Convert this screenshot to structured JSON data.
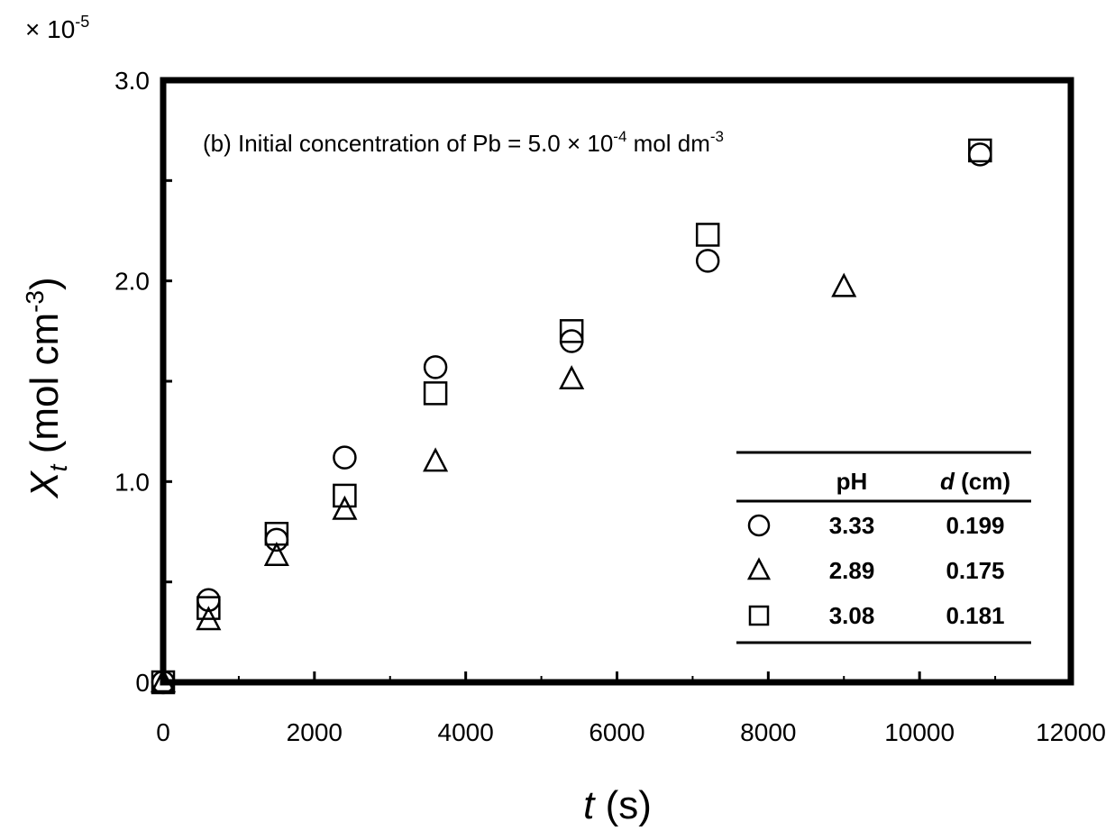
{
  "chart_data": {
    "type": "scatter",
    "annotation": {
      "prefix": "(b) Initial concentration of Pb = 5.0 × 10",
      "exp1": "-4",
      "middle": " mol dm",
      "exp2": "-3"
    },
    "xlabel": {
      "italic": "t",
      "rest": " (s)"
    },
    "ylabel": {
      "main": "X",
      "sub": "t",
      "rest": " (mol cm",
      "exp": "-3",
      "close": ")"
    },
    "y_multiplier": {
      "base": "× 10",
      "exp": "-5"
    },
    "xlim": [
      0,
      12000
    ],
    "ylim": [
      0,
      3.0
    ],
    "xticks": [
      {
        "value": 0,
        "label": "0"
      },
      {
        "value": 2000,
        "label": "2000"
      },
      {
        "value": 4000,
        "label": "4000"
      },
      {
        "value": 6000,
        "label": "6000"
      },
      {
        "value": 8000,
        "label": "8000"
      },
      {
        "value": 10000,
        "label": "10000"
      },
      {
        "value": 12000,
        "label": "12000"
      }
    ],
    "yticks": [
      {
        "value": 0,
        "label": "0"
      },
      {
        "value": 0.5,
        "label": ""
      },
      {
        "value": 1.0,
        "label": "1.0"
      },
      {
        "value": 1.5,
        "label": ""
      },
      {
        "value": 2.0,
        "label": "2.0"
      },
      {
        "value": 2.5,
        "label": ""
      },
      {
        "value": 3.0,
        "label": "3.0"
      }
    ],
    "x_minor_ticks": [
      1000,
      3000,
      5000,
      7000,
      9000,
      11000
    ],
    "legend": {
      "position": "bottom-right",
      "headers": {
        "col1": "pH",
        "col2_italic": "d",
        "col2_rest": " (cm)"
      }
    },
    "series": [
      {
        "marker": "circle",
        "ph": "3.33",
        "d": "0.199",
        "points": [
          [
            0,
            0
          ],
          [
            600,
            0.41
          ],
          [
            1500,
            0.71
          ],
          [
            2400,
            1.12
          ],
          [
            3600,
            1.57
          ],
          [
            5400,
            1.7
          ],
          [
            7200,
            2.1
          ],
          [
            10800,
            2.63
          ]
        ]
      },
      {
        "marker": "triangle",
        "ph": "2.89",
        "d": "0.175",
        "points": [
          [
            0,
            0
          ],
          [
            600,
            0.31
          ],
          [
            1500,
            0.63
          ],
          [
            2400,
            0.86
          ],
          [
            3600,
            1.1
          ],
          [
            5400,
            1.51
          ],
          [
            9000,
            1.97
          ]
        ]
      },
      {
        "marker": "square",
        "ph": "3.08",
        "d": "0.181",
        "points": [
          [
            0,
            0
          ],
          [
            600,
            0.37
          ],
          [
            1500,
            0.74
          ],
          [
            2400,
            0.93
          ],
          [
            3600,
            1.44
          ],
          [
            5400,
            1.75
          ],
          [
            7200,
            2.23
          ],
          [
            10800,
            2.65
          ]
        ]
      }
    ]
  }
}
